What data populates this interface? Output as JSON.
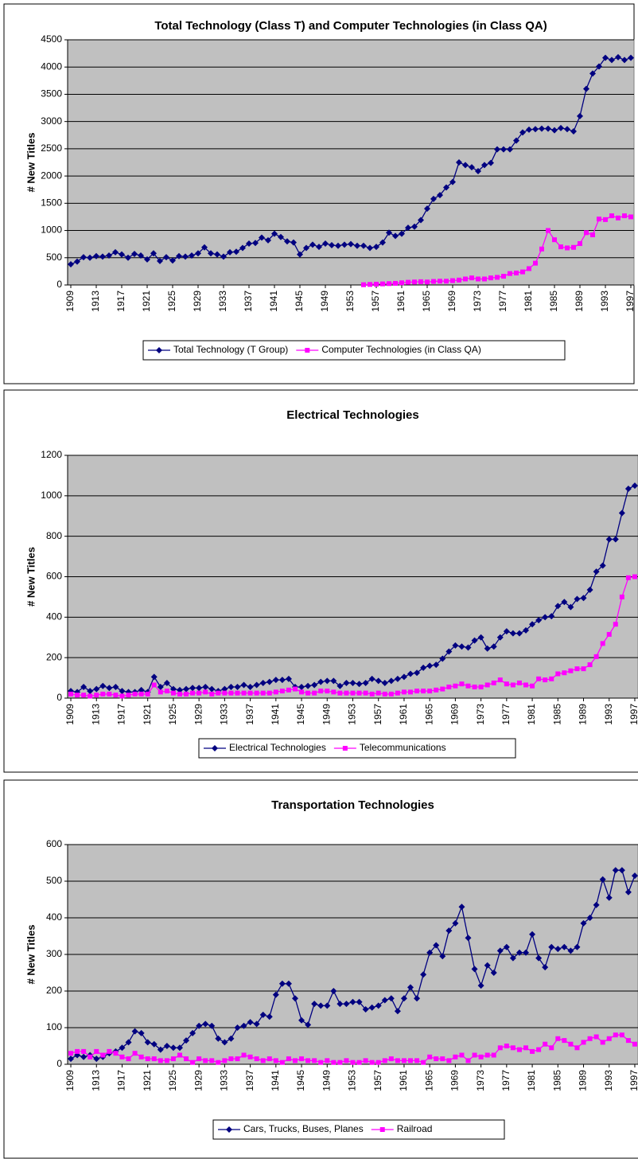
{
  "chart_data": [
    {
      "type": "line",
      "title": "Total Technology (Class T) and Computer Technologies (in Class QA)",
      "y_label": "# New Titles",
      "x": [
        1909,
        1910,
        1911,
        1912,
        1913,
        1914,
        1915,
        1916,
        1917,
        1918,
        1919,
        1920,
        1921,
        1922,
        1923,
        1924,
        1925,
        1926,
        1927,
        1928,
        1929,
        1930,
        1931,
        1932,
        1933,
        1934,
        1935,
        1936,
        1937,
        1938,
        1939,
        1940,
        1941,
        1942,
        1943,
        1944,
        1945,
        1946,
        1947,
        1948,
        1949,
        1950,
        1951,
        1952,
        1953,
        1954,
        1955,
        1956,
        1957,
        1958,
        1959,
        1960,
        1961,
        1962,
        1963,
        1964,
        1965,
        1966,
        1967,
        1968,
        1969,
        1970,
        1971,
        1972,
        1973,
        1974,
        1975,
        1976,
        1977,
        1978,
        1979,
        1980,
        1981,
        1982,
        1983,
        1984,
        1985,
        1986,
        1987,
        1988,
        1989,
        1990,
        1991,
        1992,
        1993,
        1994,
        1995,
        1996,
        1997
      ],
      "xlim": [
        1908.5,
        1997.5
      ],
      "xticks": [
        1909,
        1913,
        1917,
        1921,
        1925,
        1929,
        1933,
        1937,
        1941,
        1945,
        1949,
        1953,
        1957,
        1961,
        1965,
        1969,
        1973,
        1977,
        1981,
        1985,
        1989,
        1993,
        1997
      ],
      "ylim": [
        0,
        4500
      ],
      "yticks": [
        0,
        500,
        1000,
        1500,
        2000,
        2500,
        3000,
        3500,
        4000,
        4500
      ],
      "grid": true,
      "legend": "bottom",
      "series": [
        {
          "name": "Total Technology (T Group)",
          "color": "#000080",
          "marker": "diamond",
          "values": [
            380,
            430,
            510,
            500,
            530,
            520,
            540,
            600,
            560,
            500,
            570,
            540,
            470,
            580,
            440,
            510,
            450,
            530,
            520,
            540,
            580,
            690,
            580,
            560,
            520,
            600,
            610,
            680,
            760,
            770,
            870,
            820,
            940,
            880,
            800,
            780,
            560,
            680,
            740,
            700,
            760,
            730,
            720,
            740,
            750,
            720,
            720,
            680,
            700,
            780,
            960,
            900,
            940,
            1050,
            1070,
            1190,
            1400,
            1580,
            1650,
            1790,
            1890,
            2250,
            2200,
            2160,
            2090,
            2200,
            2240,
            2490,
            2490,
            2490,
            2650,
            2800,
            2850,
            2860,
            2870,
            2870,
            2840,
            2880,
            2860,
            2820,
            3100,
            3600,
            3880,
            4010,
            4170,
            4130,
            4180,
            4130,
            4170
          ]
        },
        {
          "name": "Computer Technologies (in Class QA)",
          "color": "#ff00ff",
          "marker": "square",
          "values": [
            null,
            null,
            null,
            null,
            null,
            null,
            null,
            null,
            null,
            null,
            null,
            null,
            null,
            null,
            null,
            null,
            null,
            null,
            null,
            null,
            null,
            null,
            null,
            null,
            null,
            null,
            null,
            null,
            null,
            null,
            null,
            null,
            null,
            null,
            null,
            null,
            null,
            null,
            null,
            null,
            null,
            null,
            null,
            null,
            null,
            null,
            5,
            10,
            15,
            20,
            25,
            30,
            40,
            50,
            55,
            60,
            55,
            65,
            70,
            70,
            80,
            90,
            110,
            130,
            110,
            110,
            130,
            140,
            160,
            210,
            220,
            240,
            300,
            400,
            660,
            1000,
            830,
            700,
            680,
            690,
            760,
            960,
            920,
            1210,
            1200,
            1270,
            1230,
            1270,
            1250
          ]
        }
      ]
    },
    {
      "type": "line",
      "title": "Electrical Technologies",
      "y_label": "# New Titles",
      "x": [
        1909,
        1910,
        1911,
        1912,
        1913,
        1914,
        1915,
        1916,
        1917,
        1918,
        1919,
        1920,
        1921,
        1922,
        1923,
        1924,
        1925,
        1926,
        1927,
        1928,
        1929,
        1930,
        1931,
        1932,
        1933,
        1934,
        1935,
        1936,
        1937,
        1938,
        1939,
        1940,
        1941,
        1942,
        1943,
        1944,
        1945,
        1946,
        1947,
        1948,
        1949,
        1950,
        1951,
        1952,
        1953,
        1954,
        1955,
        1956,
        1957,
        1958,
        1959,
        1960,
        1961,
        1962,
        1963,
        1964,
        1965,
        1966,
        1967,
        1968,
        1969,
        1970,
        1971,
        1972,
        1973,
        1974,
        1975,
        1976,
        1977,
        1978,
        1979,
        1980,
        1981,
        1982,
        1983,
        1984,
        1985,
        1986,
        1987,
        1988,
        1989,
        1990,
        1991,
        1992,
        1993,
        1994,
        1995,
        1996,
        1997
      ],
      "xlim": [
        1908.5,
        1997.5
      ],
      "xticks": [
        1909,
        1913,
        1917,
        1921,
        1925,
        1929,
        1933,
        1937,
        1941,
        1945,
        1949,
        1953,
        1957,
        1961,
        1965,
        1969,
        1973,
        1977,
        1981,
        1985,
        1989,
        1993,
        1997
      ],
      "ylim": [
        0,
        1200
      ],
      "yticks": [
        0,
        200,
        400,
        600,
        800,
        1000,
        1200
      ],
      "grid": true,
      "legend": "bottom",
      "series": [
        {
          "name": "Electrical Technologies",
          "color": "#000080",
          "marker": "diamond",
          "values": [
            35,
            30,
            55,
            35,
            45,
            60,
            50,
            55,
            35,
            30,
            30,
            40,
            30,
            105,
            55,
            75,
            45,
            40,
            45,
            50,
            50,
            55,
            45,
            35,
            45,
            55,
            55,
            65,
            55,
            65,
            75,
            80,
            90,
            90,
            95,
            55,
            55,
            60,
            65,
            80,
            85,
            85,
            60,
            75,
            75,
            70,
            75,
            95,
            85,
            75,
            85,
            95,
            105,
            120,
            125,
            150,
            160,
            165,
            195,
            230,
            260,
            255,
            250,
            285,
            300,
            245,
            255,
            300,
            330,
            320,
            320,
            335,
            365,
            385,
            400,
            405,
            455,
            475,
            450,
            490,
            495,
            535,
            625,
            655,
            785,
            785,
            915,
            1035,
            1050
          ]
        },
        {
          "name": "Telecommunications",
          "color": "#ff00ff",
          "marker": "square",
          "values": [
            20,
            15,
            15,
            10,
            15,
            20,
            20,
            15,
            10,
            15,
            20,
            20,
            20,
            65,
            30,
            35,
            25,
            20,
            20,
            25,
            25,
            30,
            20,
            25,
            25,
            25,
            25,
            25,
            25,
            25,
            25,
            25,
            30,
            35,
            40,
            45,
            30,
            25,
            25,
            35,
            35,
            30,
            25,
            25,
            25,
            25,
            25,
            20,
            25,
            20,
            20,
            25,
            30,
            30,
            35,
            35,
            35,
            40,
            45,
            55,
            60,
            70,
            60,
            55,
            55,
            65,
            75,
            90,
            70,
            65,
            75,
            65,
            60,
            95,
            90,
            95,
            120,
            125,
            135,
            145,
            145,
            165,
            205,
            270,
            315,
            365,
            500,
            595,
            600
          ]
        }
      ]
    },
    {
      "type": "line",
      "title": "Transportation Technologies",
      "y_label": "# New Titles",
      "x": [
        1909,
        1910,
        1911,
        1912,
        1913,
        1914,
        1915,
        1916,
        1917,
        1918,
        1919,
        1920,
        1921,
        1922,
        1923,
        1924,
        1925,
        1926,
        1927,
        1928,
        1929,
        1930,
        1931,
        1932,
        1933,
        1934,
        1935,
        1936,
        1937,
        1938,
        1939,
        1940,
        1941,
        1942,
        1943,
        1944,
        1945,
        1946,
        1947,
        1948,
        1949,
        1950,
        1951,
        1952,
        1953,
        1954,
        1955,
        1956,
        1957,
        1958,
        1959,
        1960,
        1961,
        1962,
        1963,
        1964,
        1965,
        1966,
        1967,
        1968,
        1969,
        1970,
        1971,
        1972,
        1973,
        1974,
        1975,
        1976,
        1977,
        1978,
        1979,
        1980,
        1981,
        1982,
        1983,
        1984,
        1985,
        1986,
        1987,
        1988,
        1989,
        1990,
        1991,
        1992,
        1993,
        1994,
        1995,
        1996,
        1997
      ],
      "xlim": [
        1908.5,
        1997.5
      ],
      "xticks": [
        1909,
        1913,
        1917,
        1921,
        1925,
        1929,
        1933,
        1937,
        1941,
        1945,
        1949,
        1953,
        1957,
        1961,
        1965,
        1969,
        1973,
        1977,
        1981,
        1985,
        1989,
        1993,
        1997
      ],
      "ylim": [
        0,
        600
      ],
      "yticks": [
        0,
        100,
        200,
        300,
        400,
        500,
        600
      ],
      "grid": true,
      "legend": "bottom",
      "series": [
        {
          "name": "Cars, Trucks, Buses, Planes",
          "color": "#000080",
          "marker": "diamond",
          "values": [
            15,
            25,
            20,
            25,
            15,
            20,
            30,
            35,
            45,
            60,
            90,
            85,
            60,
            55,
            40,
            50,
            45,
            45,
            65,
            85,
            105,
            110,
            105,
            70,
            60,
            70,
            100,
            105,
            115,
            110,
            135,
            130,
            190,
            220,
            220,
            180,
            120,
            108,
            165,
            160,
            160,
            200,
            165,
            165,
            170,
            170,
            150,
            155,
            160,
            175,
            180,
            145,
            180,
            210,
            180,
            245,
            305,
            325,
            295,
            365,
            385,
            430,
            345,
            260,
            215,
            270,
            250,
            310,
            320,
            290,
            305,
            305,
            355,
            290,
            265,
            320,
            315,
            320,
            310,
            320,
            385,
            400,
            435,
            505,
            455,
            530,
            530,
            470,
            515
          ]
        },
        {
          "name": "Railroad",
          "color": "#ff00ff",
          "marker": "square",
          "values": [
            30,
            35,
            35,
            20,
            35,
            25,
            35,
            30,
            20,
            15,
            30,
            20,
            15,
            15,
            10,
            10,
            15,
            25,
            15,
            5,
            15,
            10,
            10,
            5,
            10,
            15,
            15,
            25,
            20,
            15,
            10,
            15,
            10,
            5,
            15,
            10,
            15,
            10,
            10,
            5,
            10,
            5,
            5,
            10,
            5,
            5,
            10,
            5,
            5,
            10,
            15,
            10,
            10,
            10,
            10,
            5,
            20,
            15,
            15,
            10,
            20,
            25,
            10,
            25,
            20,
            25,
            25,
            45,
            50,
            45,
            40,
            45,
            35,
            40,
            55,
            45,
            70,
            65,
            55,
            45,
            60,
            70,
            75,
            60,
            70,
            80,
            80,
            65,
            55
          ]
        }
      ]
    }
  ]
}
